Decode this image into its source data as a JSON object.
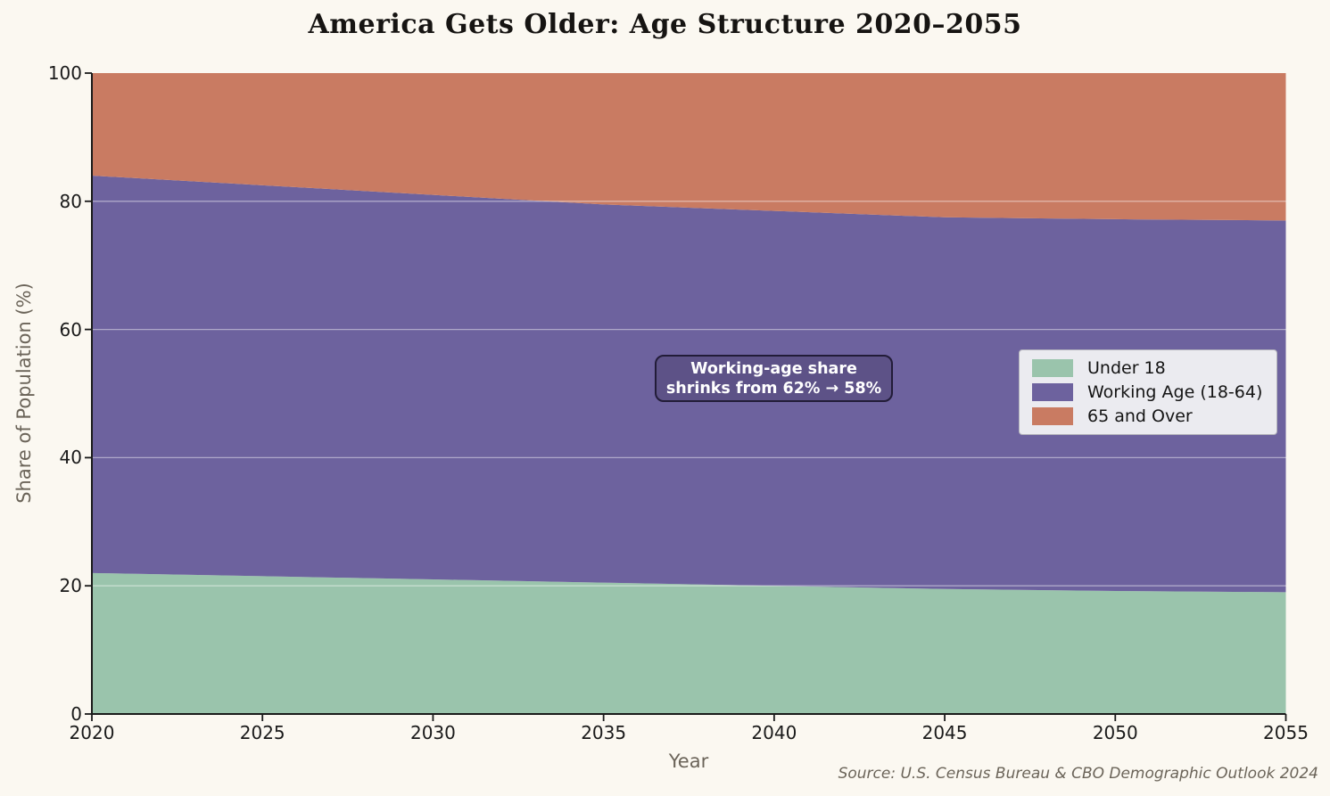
{
  "title": "America Gets Older: Age Structure 2020–2055",
  "axes": {
    "x": {
      "label": "Year",
      "min": 2020,
      "max": 2055,
      "ticks": [
        "2020",
        "2025",
        "2030",
        "2035",
        "2040",
        "2045",
        "2050",
        "2055"
      ],
      "tick_values": [
        2020,
        2025,
        2030,
        2035,
        2040,
        2045,
        2050,
        2055
      ]
    },
    "y": {
      "label": "Share of Population (%)",
      "min": 0,
      "max": 100,
      "ticks": [
        "0",
        "20",
        "40",
        "60",
        "80",
        "100"
      ],
      "tick_values": [
        0,
        20,
        40,
        60,
        80,
        100
      ]
    }
  },
  "legend": {
    "items": [
      {
        "label": "Under 18",
        "color": "#9ac4ac"
      },
      {
        "label": "Working Age (18-64)",
        "color": "#6d629e"
      },
      {
        "label": "65 and Over",
        "color": "#c97b62"
      }
    ]
  },
  "annotation": {
    "line1": "Working-age share",
    "line2": "shrinks from 62% → 58%"
  },
  "source": "Source: U.S. Census Bureau & CBO Demographic Outlook 2024",
  "colors": {
    "background": "#fbf8f1",
    "under_18": "#9ac4ac",
    "working_age": "#6d629e",
    "over_65": "#c97b62",
    "spine": "#1a1a1a",
    "grid": "rgba(255,255,255,0.45)",
    "muted_text": "#6b6459",
    "legend_bg": "#ebebf0",
    "annotation_bg": "#5d5287",
    "annotation_border": "#221c38"
  },
  "chart_data": {
    "type": "area",
    "stacked": true,
    "title": "America Gets Older: Age Structure 2020–2055",
    "xlabel": "Year",
    "ylabel": "Share of Population (%)",
    "xlim": [
      2020,
      2055
    ],
    "ylim": [
      0,
      100
    ],
    "grid": true,
    "legend_position": "center right",
    "x": [
      2020,
      2025,
      2030,
      2035,
      2040,
      2045,
      2050,
      2055
    ],
    "series": [
      {
        "name": "Under 18",
        "color": "#9ac4ac",
        "values": [
          22,
          21.5,
          21,
          20.5,
          20,
          19.5,
          19.2,
          19
        ]
      },
      {
        "name": "Working Age (18-64)",
        "color": "#6d629e",
        "values": [
          62,
          61,
          60,
          59,
          58.5,
          58,
          58,
          58
        ]
      },
      {
        "name": "65 and Over",
        "color": "#c97b62",
        "values": [
          16,
          17.5,
          19,
          20.5,
          21.5,
          22.5,
          22.8,
          23
        ]
      }
    ],
    "annotations": [
      {
        "text": "Working-age share shrinks from 62% → 58%"
      }
    ]
  }
}
